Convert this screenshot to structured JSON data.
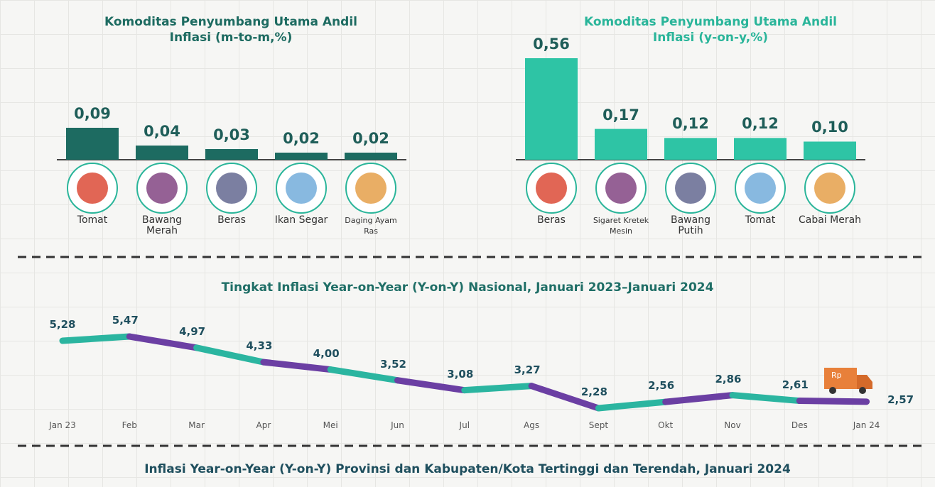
{
  "chart_data": [
    {
      "type": "bar",
      "title": "Komoditas Penyumbang Utama Andil Inflasi (m-to-m,%)",
      "color": "#1d6b61",
      "categories": [
        "Tomat",
        "Bawang Merah",
        "Beras",
        "Ikan Segar",
        "Daging Ayam Ras"
      ],
      "values": [
        0.09,
        0.04,
        0.03,
        0.02,
        0.02
      ],
      "value_labels": [
        "0,09",
        "0,04",
        "0,03",
        "0,02",
        "0,02"
      ]
    },
    {
      "type": "bar",
      "title": "Komoditas Penyumbang Utama Andil Inflasi (y-on-y,%)",
      "color": "#2ec4a5",
      "categories": [
        "Beras",
        "Sigaret Kretek Mesin",
        "Bawang Putih",
        "Tomat",
        "Cabai Merah"
      ],
      "values": [
        0.56,
        0.17,
        0.12,
        0.12,
        0.1
      ],
      "value_labels": [
        "0,56",
        "0,17",
        "0,12",
        "0,12",
        "0,10"
      ]
    },
    {
      "type": "line",
      "title": "Tingkat Inflasi Year-on-Year (Y-on-Y) Nasional, Januari 2023–Januari 2024",
      "colors": [
        "#2bb5a0",
        "#6b3fa3"
      ],
      "categories": [
        "Jan 23",
        "Feb",
        "Mar",
        "Apr",
        "Mei",
        "Jun",
        "Jul",
        "Ags",
        "Sept",
        "Okt",
        "Nov",
        "Des",
        "Jan 24"
      ],
      "values": [
        5.28,
        5.47,
        4.97,
        4.33,
        4.0,
        3.52,
        3.08,
        3.27,
        2.28,
        2.56,
        2.86,
        2.61,
        2.57
      ],
      "value_labels": [
        "5,28",
        "5,47",
        "4,97",
        "4,33",
        "4,00",
        "3,52",
        "3,08",
        "3,27",
        "2,28",
        "2,56",
        "2,86",
        "2,61",
        "2,57"
      ]
    }
  ],
  "footer_title": "Inflasi Year-on-Year (Y-on-Y) Provinsi dan Kabupaten/Kota Tertinggi dan Terendah, Januari 2024"
}
